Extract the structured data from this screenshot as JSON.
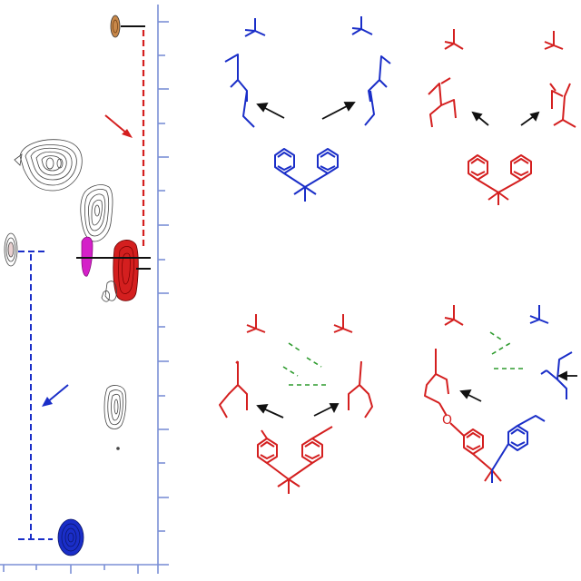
{
  "colors": {
    "axis": "#7b8fd6",
    "blue": "#1a2ec8",
    "red": "#d41f1f",
    "green": "#2e9b2e",
    "magenta": "#d420c8",
    "orange_peak": "#c8884a",
    "contour": "#444444",
    "black": "#111111"
  },
  "labels": {
    "oxygen": "O"
  },
  "icons": {
    "arrow": "arrow-icon"
  }
}
